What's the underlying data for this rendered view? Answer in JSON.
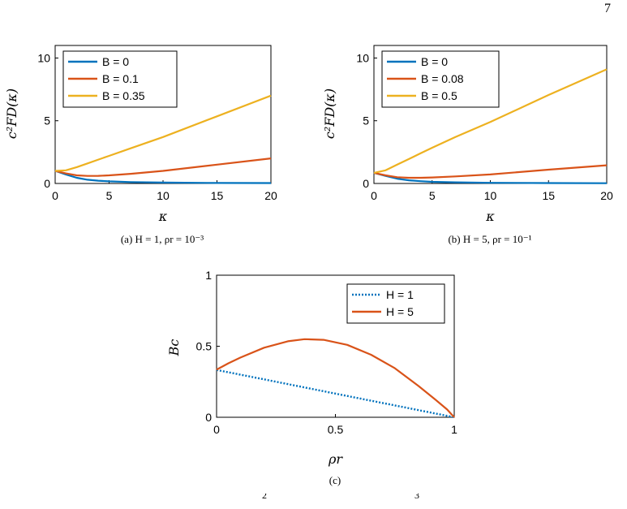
{
  "page_number": "7",
  "colors": {
    "blue": "#0072BD",
    "orange": "#D95319",
    "yellow": "#EDB120"
  },
  "bottom_fragment": [
    "2",
    "3"
  ],
  "chart_data": [
    {
      "id": "a",
      "type": "line",
      "caption": "(a) H = 1,  ρr = 10⁻³",
      "xlabel": "κ",
      "ylabel": "c²FD(κ)",
      "xlim": [
        0,
        20
      ],
      "ylim": [
        0,
        11
      ],
      "xticks": [
        0,
        5,
        10,
        15,
        20
      ],
      "yticks": [
        0,
        5,
        10
      ],
      "grid": false,
      "legend_position": "top-left",
      "series": [
        {
          "name": "B = 0",
          "color": "#0072BD",
          "x": [
            0,
            1,
            2,
            3,
            4,
            5,
            7,
            10,
            15,
            20
          ],
          "y": [
            1.0,
            0.72,
            0.45,
            0.3,
            0.22,
            0.17,
            0.11,
            0.07,
            0.04,
            0.03
          ]
        },
        {
          "name": "B = 0.1",
          "color": "#D95319",
          "x": [
            0,
            1,
            2,
            3,
            4,
            5,
            7,
            10,
            15,
            20
          ],
          "y": [
            1.0,
            0.8,
            0.65,
            0.6,
            0.61,
            0.65,
            0.77,
            1.0,
            1.5,
            2.0
          ]
        },
        {
          "name": "B = 0.35",
          "color": "#EDB120",
          "x": [
            0,
            1,
            2,
            3,
            4,
            5,
            7,
            10,
            15,
            20
          ],
          "y": [
            1.0,
            1.05,
            1.3,
            1.6,
            1.9,
            2.2,
            2.8,
            3.7,
            5.35,
            7.0
          ]
        }
      ]
    },
    {
      "id": "b",
      "type": "line",
      "caption": "(b) H = 5,  ρr = 10⁻¹",
      "xlabel": "κ",
      "ylabel": "c²FD(κ)",
      "xlim": [
        0,
        20
      ],
      "ylim": [
        0,
        11
      ],
      "xticks": [
        0,
        5,
        10,
        15,
        20
      ],
      "yticks": [
        0,
        5,
        10
      ],
      "grid": false,
      "legend_position": "top-left",
      "series": [
        {
          "name": "B = 0",
          "color": "#0072BD",
          "x": [
            0,
            1,
            2,
            3,
            4,
            5,
            7,
            10,
            15,
            20
          ],
          "y": [
            0.85,
            0.6,
            0.38,
            0.25,
            0.18,
            0.13,
            0.09,
            0.05,
            0.03,
            0.02
          ]
        },
        {
          "name": "B = 0.08",
          "color": "#D95319",
          "x": [
            0,
            1,
            2,
            3,
            4,
            5,
            7,
            10,
            15,
            20
          ],
          "y": [
            0.85,
            0.65,
            0.5,
            0.45,
            0.45,
            0.48,
            0.56,
            0.72,
            1.1,
            1.45
          ]
        },
        {
          "name": "B = 0.5",
          "color": "#EDB120",
          "x": [
            0,
            1,
            2,
            3,
            4,
            5,
            7,
            10,
            15,
            20
          ],
          "y": [
            0.85,
            1.05,
            1.5,
            1.95,
            2.4,
            2.85,
            3.7,
            4.9,
            7.05,
            9.1
          ]
        }
      ]
    },
    {
      "id": "c",
      "type": "line",
      "caption": "(c)",
      "xlabel": "ρr",
      "ylabel": "Bc",
      "xlim": [
        0,
        1
      ],
      "ylim": [
        0,
        1
      ],
      "xticks": [
        0,
        0.5,
        1
      ],
      "yticks": [
        0,
        0.5,
        1
      ],
      "grid": false,
      "legend_position": "top-right",
      "series": [
        {
          "name": "H = 1",
          "color": "#0072BD",
          "style": "dotted",
          "x": [
            0,
            0.2,
            0.4,
            0.6,
            0.8,
            1.0
          ],
          "y": [
            0.333,
            0.267,
            0.2,
            0.133,
            0.067,
            0.0
          ]
        },
        {
          "name": "H = 5",
          "color": "#D95319",
          "style": "solid",
          "x": [
            0,
            0.05,
            0.1,
            0.2,
            0.3,
            0.37,
            0.45,
            0.55,
            0.65,
            0.75,
            0.85,
            0.92,
            0.97,
            1.0
          ],
          "y": [
            0.335,
            0.38,
            0.42,
            0.49,
            0.535,
            0.55,
            0.545,
            0.51,
            0.44,
            0.345,
            0.22,
            0.125,
            0.055,
            0.0
          ]
        }
      ]
    }
  ]
}
